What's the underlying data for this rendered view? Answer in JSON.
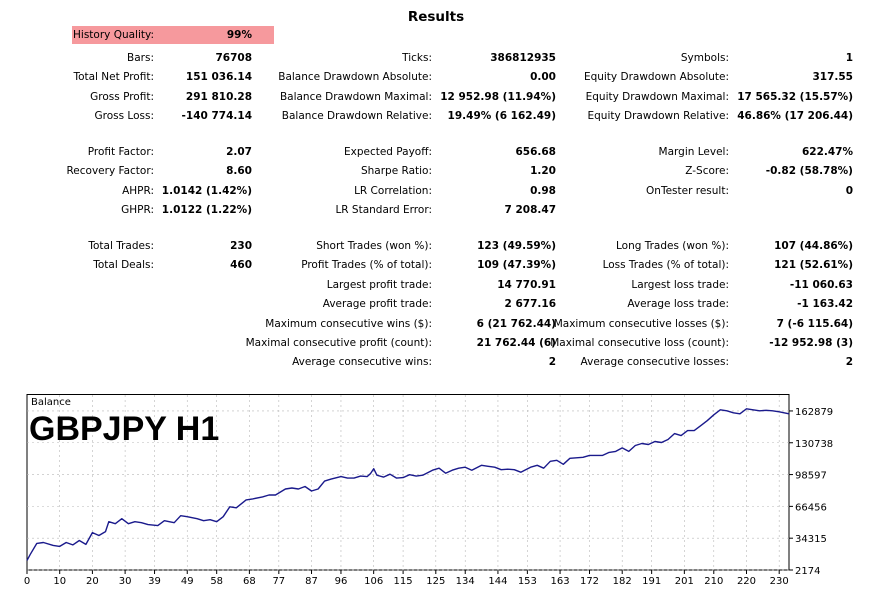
{
  "report": {
    "title": "Results",
    "history_quality": {
      "label": "History Quality:",
      "value": "99%"
    },
    "rows": [
      [
        {
          "label": "Bars:",
          "value": "76708"
        },
        {
          "label": "Ticks:",
          "value": "386812935"
        },
        {
          "label": "Symbols:",
          "value": "1"
        }
      ],
      [
        {
          "label": "Total Net Profit:",
          "value": "151 036.14"
        },
        {
          "label": "Balance Drawdown Absolute:",
          "value": "0.00"
        },
        {
          "label": "Equity Drawdown Absolute:",
          "value": "317.55"
        }
      ],
      [
        {
          "label": "Gross Profit:",
          "value": "291 810.28"
        },
        {
          "label": "Balance Drawdown Maximal:",
          "value": "12 952.98 (11.94%)"
        },
        {
          "label": "Equity Drawdown Maximal:",
          "value": "17 565.32 (15.57%)"
        }
      ],
      [
        {
          "label": "Gross Loss:",
          "value": "-140 774.14"
        },
        {
          "label": "Balance Drawdown Relative:",
          "value": "19.49% (6 162.49)"
        },
        {
          "label": "Equity Drawdown Relative:",
          "value": "46.86% (17 206.44)"
        }
      ],
      [
        {
          "label": "Profit Factor:",
          "value": "2.07"
        },
        {
          "label": "Expected Payoff:",
          "value": "656.68"
        },
        {
          "label": "Margin Level:",
          "value": "622.47%"
        }
      ],
      [
        {
          "label": "Recovery Factor:",
          "value": "8.60"
        },
        {
          "label": "Sharpe Ratio:",
          "value": "1.20"
        },
        {
          "label": "Z-Score:",
          "value": "-0.82 (58.78%)"
        }
      ],
      [
        {
          "label": "AHPR:",
          "value": "1.0142 (1.42%)"
        },
        {
          "label": "LR Correlation:",
          "value": "0.98"
        },
        {
          "label": "OnTester result:",
          "value": "0"
        }
      ],
      [
        {
          "label": "GHPR:",
          "value": "1.0122 (1.22%)"
        },
        {
          "label": "LR Standard Error:",
          "value": "7 208.47"
        },
        null
      ],
      [
        {
          "label": "Total Trades:",
          "value": "230"
        },
        {
          "label": "Short Trades (won %):",
          "value": "123 (49.59%)"
        },
        {
          "label": "Long Trades (won %):",
          "value": "107 (44.86%)"
        }
      ],
      [
        {
          "label": "Total Deals:",
          "value": "460"
        },
        {
          "label": "Profit Trades (% of total):",
          "value": "109 (47.39%)"
        },
        {
          "label": "Loss Trades (% of total):",
          "value": "121 (52.61%)"
        }
      ],
      [
        null,
        {
          "label": "Largest profit trade:",
          "value": "14 770.91"
        },
        {
          "label": "Largest loss trade:",
          "value": "-11 060.63"
        }
      ],
      [
        null,
        {
          "label": "Average profit trade:",
          "value": "2 677.16"
        },
        {
          "label": "Average loss trade:",
          "value": "-1 163.42"
        }
      ],
      [
        null,
        {
          "label": "Maximum consecutive wins ($):",
          "value": "6 (21 762.44)"
        },
        {
          "label": "Maximum consecutive losses ($):",
          "value": "7 (-6 115.64)"
        }
      ],
      [
        null,
        {
          "label": "Maximal consecutive profit (count):",
          "value": "21 762.44 (6)"
        },
        {
          "label": "Maximal consecutive loss (count):",
          "value": "-12 952.98 (3)"
        }
      ],
      [
        null,
        {
          "label": "Average consecutive wins:",
          "value": "2"
        },
        {
          "label": "Average consecutive losses:",
          "value": "2"
        }
      ]
    ]
  },
  "chart_data": {
    "type": "line",
    "title": "Balance",
    "overlay_text": "GBPJPY H1",
    "xlabel": "",
    "ylabel": "",
    "grid": true,
    "line_color": "#1a1a8c",
    "x_ticks": [
      0,
      10,
      20,
      30,
      39,
      49,
      58,
      68,
      77,
      87,
      96,
      106,
      115,
      125,
      134,
      144,
      153,
      163,
      172,
      182,
      191,
      201,
      210,
      220,
      230
    ],
    "y_ticks": [
      2174,
      34315,
      66456,
      98597,
      130738,
      162879
    ],
    "xlim": [
      0,
      233
    ],
    "ylim": [
      2174,
      180000
    ],
    "series": [
      {
        "values": [
          [
            0,
            11900
          ],
          [
            1,
            18000
          ],
          [
            3,
            29000
          ],
          [
            5,
            30000
          ],
          [
            8,
            27000
          ],
          [
            10,
            26000
          ],
          [
            12,
            30000
          ],
          [
            14,
            27500
          ],
          [
            16,
            32000
          ],
          [
            18,
            28000
          ],
          [
            20,
            40000
          ],
          [
            22,
            37000
          ],
          [
            24,
            41000
          ],
          [
            25,
            51000
          ],
          [
            27,
            49000
          ],
          [
            29,
            54000
          ],
          [
            31,
            49000
          ],
          [
            33,
            51000
          ],
          [
            35,
            50000
          ],
          [
            37,
            48000
          ],
          [
            40,
            47000
          ],
          [
            42,
            52000
          ],
          [
            45,
            50000
          ],
          [
            47,
            57000
          ],
          [
            49,
            56000
          ],
          [
            52,
            54000
          ],
          [
            54,
            52000
          ],
          [
            56,
            53000
          ],
          [
            58,
            51000
          ],
          [
            60,
            56000
          ],
          [
            62,
            66000
          ],
          [
            64,
            65000
          ],
          [
            67,
            73000
          ],
          [
            69,
            74000
          ],
          [
            72,
            76000
          ],
          [
            74,
            78000
          ],
          [
            76,
            78000
          ],
          [
            79,
            84000
          ],
          [
            81,
            85000
          ],
          [
            83,
            84000
          ],
          [
            85,
            86500
          ],
          [
            87,
            82000
          ],
          [
            89,
            84000
          ],
          [
            91,
            92000
          ],
          [
            93,
            94000
          ],
          [
            96,
            96500
          ],
          [
            98,
            95000
          ],
          [
            100,
            95000
          ],
          [
            102,
            97000
          ],
          [
            104,
            96500
          ],
          [
            105,
            99500
          ],
          [
            106,
            104500
          ],
          [
            107,
            98000
          ],
          [
            109,
            96000
          ],
          [
            111,
            99000
          ],
          [
            113,
            95000
          ],
          [
            115,
            95500
          ],
          [
            117,
            98500
          ],
          [
            119,
            97000
          ],
          [
            121,
            98000
          ],
          [
            124,
            103000
          ],
          [
            126,
            105000
          ],
          [
            128,
            100000
          ],
          [
            130,
            103000
          ],
          [
            132,
            105000
          ],
          [
            134,
            106000
          ],
          [
            136,
            103000
          ],
          [
            139,
            108000
          ],
          [
            141,
            107000
          ],
          [
            143,
            106000
          ],
          [
            145,
            103500
          ],
          [
            147,
            104000
          ],
          [
            149,
            103500
          ],
          [
            151,
            101000
          ],
          [
            154,
            106000
          ],
          [
            156,
            108000
          ],
          [
            158,
            105000
          ],
          [
            160,
            112000
          ],
          [
            162,
            113000
          ],
          [
            164,
            109000
          ],
          [
            166,
            115000
          ],
          [
            168,
            115500
          ],
          [
            170,
            116000
          ],
          [
            172,
            118000
          ],
          [
            174,
            118000
          ],
          [
            176,
            118000
          ],
          [
            178,
            121000
          ],
          [
            180,
            122000
          ],
          [
            182,
            125500
          ],
          [
            184,
            122000
          ],
          [
            186,
            128000
          ],
          [
            188,
            130000
          ],
          [
            190,
            129000
          ],
          [
            192,
            132000
          ],
          [
            194,
            131000
          ],
          [
            196,
            134000
          ],
          [
            198,
            140000
          ],
          [
            200,
            138000
          ],
          [
            202,
            143000
          ],
          [
            204,
            143000
          ],
          [
            206,
            148000
          ],
          [
            208,
            153000
          ],
          [
            210,
            159000
          ],
          [
            212,
            164000
          ],
          [
            214,
            163000
          ],
          [
            216,
            161000
          ],
          [
            218,
            160000
          ],
          [
            220,
            165000
          ],
          [
            222,
            164000
          ],
          [
            224,
            163000
          ],
          [
            226,
            163500
          ],
          [
            228,
            163000
          ],
          [
            230,
            162000
          ],
          [
            233,
            160000
          ]
        ]
      }
    ]
  }
}
